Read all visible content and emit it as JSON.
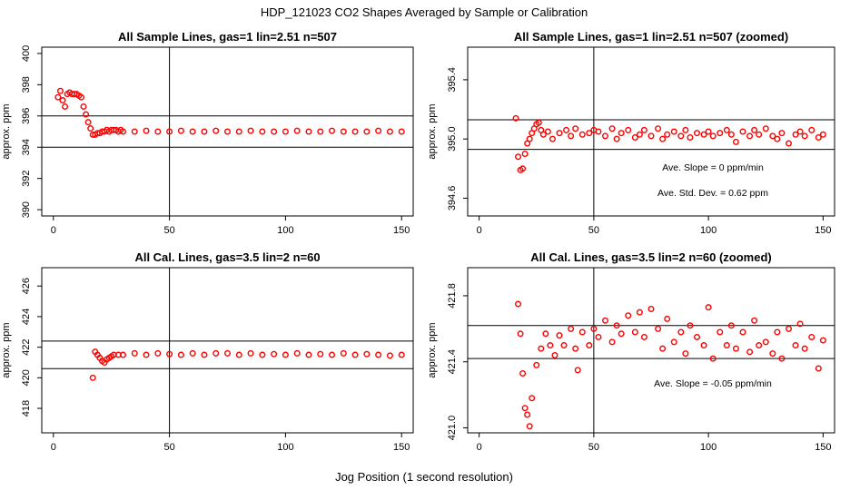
{
  "figure": {
    "title": "HDP_121023  CO2 Shapes Averaged by Sample or Calibration",
    "xlabel": "Jog Position (1 second resolution)"
  },
  "colors": {
    "points": "#ff0000",
    "lines": "#000000"
  },
  "chart_data": [
    {
      "type": "scatter",
      "title": "All Sample Lines, gas=1 lin=2.51 n=507",
      "ylabel": "approx. ppm",
      "xlim": [
        -5,
        155
      ],
      "ylim": [
        389.6,
        400.4
      ],
      "xticks": [
        0,
        50,
        100,
        150
      ],
      "xtick_labels": [
        "0",
        "50",
        "100",
        "150"
      ],
      "yticks": [
        390,
        392,
        394,
        396,
        398,
        400
      ],
      "ytick_labels": [
        "390",
        "392",
        "394",
        "396",
        "398",
        "400"
      ],
      "vline": 50,
      "hlines": [
        394,
        396
      ],
      "annotations": [],
      "grid": false,
      "x": [
        2,
        3,
        4,
        5,
        6,
        7,
        8,
        9,
        10,
        11,
        12,
        13,
        14,
        15,
        16,
        17,
        18,
        19,
        20,
        21,
        22,
        23,
        24,
        25,
        26,
        27,
        28,
        29,
        30,
        35,
        40,
        45,
        50,
        55,
        60,
        65,
        70,
        75,
        80,
        85,
        90,
        95,
        100,
        105,
        110,
        115,
        120,
        125,
        130,
        135,
        140,
        145,
        150
      ],
      "y": [
        397.2,
        397.6,
        397.0,
        396.6,
        397.4,
        397.5,
        397.4,
        397.4,
        397.4,
        397.3,
        397.2,
        396.6,
        396.1,
        395.6,
        395.2,
        394.8,
        394.8,
        394.9,
        394.9,
        395.0,
        395.0,
        395.1,
        395.0,
        395.1,
        395.1,
        395.1,
        395.0,
        395.1,
        395.0,
        395.0,
        395.05,
        395.0,
        395.0,
        395.05,
        395.0,
        395.0,
        395.05,
        395.0,
        395.0,
        395.05,
        395.0,
        395.0,
        395.0,
        395.05,
        395.0,
        395.0,
        395.05,
        395.0,
        395.0,
        395.0,
        395.05,
        395.0,
        395.0
      ]
    },
    {
      "type": "scatter",
      "title": "All Sample Lines, gas=1 lin=2.51 n=507 (zoomed)",
      "ylabel": "approx. ppm",
      "xlim": [
        -5,
        155
      ],
      "ylim": [
        394.48,
        395.62
      ],
      "xticks": [
        0,
        50,
        100,
        150
      ],
      "xtick_labels": [
        "0",
        "50",
        "100",
        "150"
      ],
      "yticks": [
        394.6,
        395.0,
        395.4
      ],
      "ytick_labels": [
        "394.6",
        "395.0",
        "395.4"
      ],
      "vline": 50,
      "hlines": [
        394.93,
        395.13
      ],
      "annotations": [
        "Ave. Slope =  0  ppm/min",
        "Ave. Std. Dev. =  0.62  ppm"
      ],
      "grid": false,
      "x": [
        16,
        17,
        18,
        19,
        20,
        21,
        22,
        23,
        24,
        25,
        26,
        27,
        28,
        30,
        32,
        35,
        38,
        40,
        42,
        45,
        48,
        50,
        52,
        55,
        58,
        60,
        62,
        65,
        68,
        70,
        72,
        75,
        78,
        80,
        82,
        85,
        88,
        90,
        92,
        95,
        98,
        100,
        102,
        105,
        108,
        110,
        112,
        115,
        118,
        120,
        122,
        125,
        128,
        130,
        132,
        135,
        138,
        140,
        142,
        145,
        148,
        150
      ],
      "y": [
        395.14,
        394.88,
        394.79,
        394.8,
        394.9,
        394.97,
        395.0,
        395.04,
        395.07,
        395.1,
        395.11,
        395.06,
        395.03,
        395.05,
        395.0,
        395.04,
        395.06,
        395.02,
        395.07,
        395.03,
        395.04,
        395.06,
        395.05,
        395.02,
        395.07,
        395.0,
        395.04,
        395.06,
        395.01,
        395.03,
        395.06,
        395.02,
        395.07,
        395.0,
        395.03,
        395.05,
        395.02,
        395.06,
        395.01,
        395.04,
        395.03,
        395.05,
        395.02,
        395.04,
        395.06,
        395.03,
        394.98,
        395.05,
        395.02,
        395.06,
        395.03,
        395.07,
        395.02,
        395.0,
        395.04,
        394.97,
        395.03,
        395.05,
        395.02,
        395.06,
        395.01,
        395.03
      ]
    },
    {
      "type": "scatter",
      "title": "All Cal. Lines, gas=3.5 lin=2 n=60",
      "ylabel": "approx. ppm",
      "xlim": [
        -5,
        155
      ],
      "ylim": [
        416.4,
        427.2
      ],
      "xticks": [
        0,
        50,
        100,
        150
      ],
      "xtick_labels": [
        "0",
        "50",
        "100",
        "150"
      ],
      "yticks": [
        418,
        420,
        422,
        424,
        426
      ],
      "ytick_labels": [
        "418",
        "420",
        "422",
        "424",
        "426"
      ],
      "vline": 50,
      "hlines": [
        420.6,
        422.4
      ],
      "annotations": [],
      "grid": false,
      "x": [
        17,
        18,
        19,
        20,
        21,
        22,
        23,
        24,
        25,
        26,
        28,
        30,
        35,
        40,
        45,
        50,
        55,
        60,
        65,
        70,
        75,
        80,
        85,
        90,
        95,
        100,
        105,
        110,
        115,
        120,
        125,
        130,
        135,
        140,
        145,
        150
      ],
      "y": [
        420.0,
        421.7,
        421.5,
        421.3,
        421.1,
        421.0,
        421.2,
        421.3,
        421.4,
        421.5,
        421.5,
        421.5,
        421.6,
        421.5,
        421.6,
        421.55,
        421.5,
        421.6,
        421.5,
        421.6,
        421.6,
        421.5,
        421.6,
        421.5,
        421.55,
        421.5,
        421.6,
        421.5,
        421.55,
        421.5,
        421.6,
        421.5,
        421.55,
        421.5,
        421.45,
        421.5
      ]
    },
    {
      "type": "scatter",
      "title": "All Cal. Lines, gas=3.5 lin=2 n=60 (zoomed)",
      "ylabel": "approx. ppm",
      "xlim": [
        -5,
        155
      ],
      "ylim": [
        420.97,
        421.97
      ],
      "xticks": [
        0,
        50,
        100,
        150
      ],
      "xtick_labels": [
        "0",
        "50",
        "100",
        "150"
      ],
      "yticks": [
        421.0,
        421.4,
        421.8
      ],
      "ytick_labels": [
        "421.0",
        "421.4",
        "421.8"
      ],
      "vline": 50,
      "hlines": [
        421.42,
        421.62
      ],
      "annotations": [
        "Ave. Slope =  -0.05  ppm/min"
      ],
      "grid": false,
      "x": [
        17,
        18,
        19,
        20,
        21,
        22,
        23,
        25,
        27,
        29,
        31,
        33,
        35,
        37,
        40,
        42,
        43,
        45,
        48,
        50,
        52,
        55,
        58,
        60,
        62,
        65,
        68,
        70,
        72,
        75,
        78,
        80,
        82,
        85,
        88,
        90,
        92,
        95,
        98,
        100,
        102,
        105,
        108,
        110,
        112,
        115,
        118,
        120,
        122,
        125,
        128,
        130,
        132,
        135,
        138,
        140,
        142,
        145,
        148,
        150
      ],
      "y": [
        421.75,
        421.57,
        421.33,
        421.12,
        421.08,
        421.01,
        421.18,
        421.38,
        421.48,
        421.57,
        421.5,
        421.44,
        421.56,
        421.5,
        421.6,
        421.48,
        421.35,
        421.58,
        421.5,
        421.6,
        421.55,
        421.65,
        421.52,
        421.62,
        421.57,
        421.68,
        421.58,
        421.7,
        421.55,
        421.72,
        421.6,
        421.48,
        421.66,
        421.52,
        421.58,
        421.45,
        421.62,
        421.55,
        421.5,
        421.73,
        421.42,
        421.58,
        421.5,
        421.62,
        421.48,
        421.58,
        421.46,
        421.65,
        421.5,
        421.52,
        421.45,
        421.58,
        421.42,
        421.6,
        421.5,
        421.63,
        421.48,
        421.55,
        421.36,
        421.53
      ]
    }
  ]
}
